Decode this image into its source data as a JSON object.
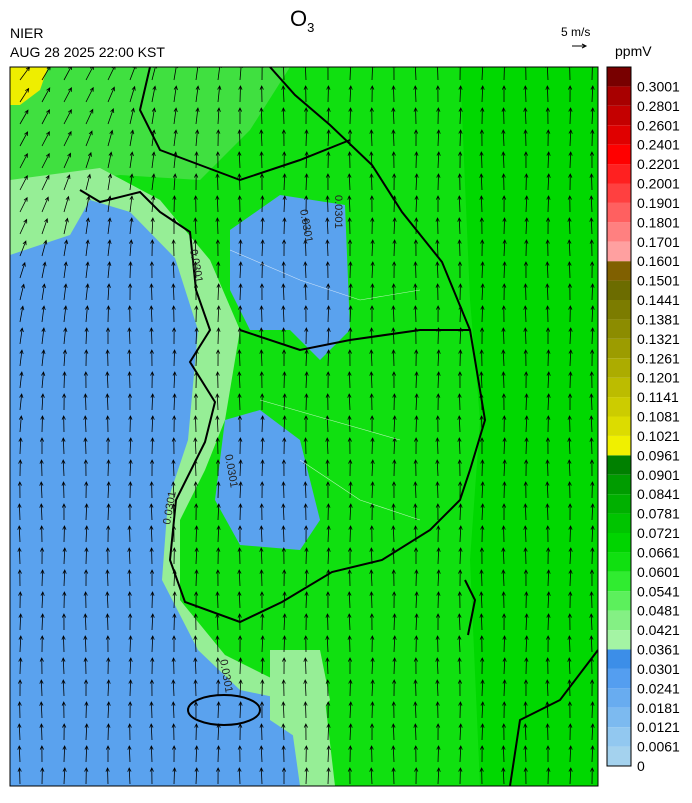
{
  "header": {
    "agency": "NIER",
    "datetime": "AUG 28 2025 22:00 KST",
    "title": {
      "base": "O",
      "subscript": "3"
    },
    "wind_reference": "5 m/s"
  },
  "colorbar": {
    "unit": "ppmV",
    "levels": [
      0,
      0.0061,
      0.0121,
      0.0181,
      0.0241,
      0.0301,
      0.0361,
      0.0421,
      0.0481,
      0.0541,
      0.0601,
      0.0661,
      0.0721,
      0.0781,
      0.0841,
      0.0901,
      0.0961,
      0.1021,
      0.1081,
      0.1141,
      0.1201,
      0.1261,
      0.1321,
      0.1381,
      0.1441,
      0.1501,
      0.1601,
      0.1701,
      0.1801,
      0.1901,
      0.2001,
      0.2201,
      0.2401,
      0.2601,
      0.2801,
      0.3001
    ],
    "colors": [
      "#a4d2ee",
      "#92c8f0",
      "#7cbaf0",
      "#68acf0",
      "#549ef0",
      "#3c8ee8",
      "#a4f4a4",
      "#84f084",
      "#5cf05c",
      "#30ec30",
      "#10e010",
      "#00d400",
      "#00c400",
      "#00b000",
      "#009c00",
      "#008000",
      "#f0f000",
      "#dcdc00",
      "#cccc00",
      "#bcbc00",
      "#acac00",
      "#9c9c00",
      "#8c8c00",
      "#7c7c00",
      "#6c6c00",
      "#806000",
      "#ffa0a0",
      "#ff8080",
      "#ff6060",
      "#ff4040",
      "#ff2020",
      "#ff0000",
      "#e00000",
      "#c40000",
      "#a80000",
      "#780000"
    ]
  },
  "contour_labels": [
    "0.0301",
    "0.0301",
    "0.0301",
    "0.0301",
    "0.0301",
    "0.0301"
  ]
}
